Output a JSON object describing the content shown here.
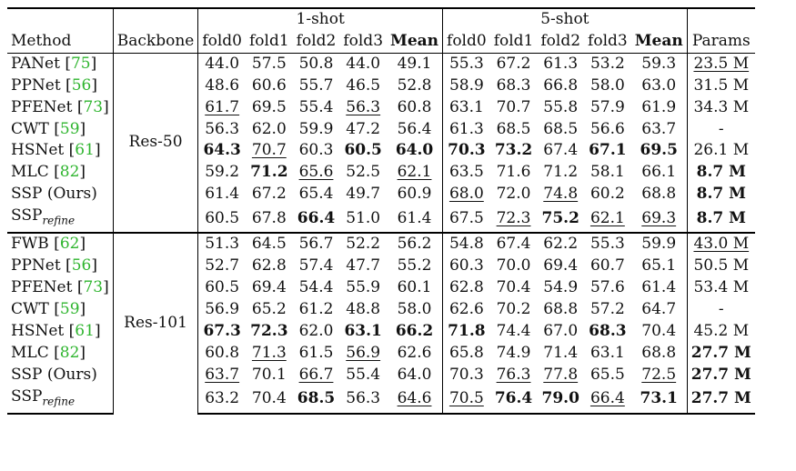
{
  "header": {
    "group1": "1-shot",
    "group2": "5-shot",
    "method": "Method",
    "backbone": "Backbone",
    "cols": [
      "fold0",
      "fold1",
      "fold2",
      "fold3",
      "Mean",
      "fold0",
      "fold1",
      "fold2",
      "fold3",
      "Mean"
    ],
    "params": "Params"
  },
  "sections": [
    {
      "backbone": "Res-50",
      "rows": [
        {
          "method": "PANet",
          "cite": "75",
          "sub": "",
          "vals": [
            "44.0",
            "57.5",
            "50.8",
            "44.0",
            "49.1",
            "55.3",
            "67.2",
            "61.3",
            "53.2",
            "59.3"
          ],
          "params": "23.5 M",
          "bold": [],
          "under": [
            10
          ]
        },
        {
          "method": "PPNet",
          "cite": "56",
          "sub": "",
          "vals": [
            "48.6",
            "60.6",
            "55.7",
            "46.5",
            "52.8",
            "58.9",
            "68.3",
            "66.8",
            "58.0",
            "63.0"
          ],
          "params": "31.5 M",
          "bold": [],
          "under": []
        },
        {
          "method": "PFENet",
          "cite": "73",
          "sub": "",
          "vals": [
            "61.7",
            "69.5",
            "55.4",
            "56.3",
            "60.8",
            "63.1",
            "70.7",
            "55.8",
            "57.9",
            "61.9"
          ],
          "params": "34.3 M",
          "bold": [],
          "under": [
            0,
            3
          ]
        },
        {
          "method": "CWT",
          "cite": "59",
          "sub": "",
          "vals": [
            "56.3",
            "62.0",
            "59.9",
            "47.2",
            "56.4",
            "61.3",
            "68.5",
            "68.5",
            "56.6",
            "63.7"
          ],
          "params": "-",
          "bold": [],
          "under": []
        },
        {
          "method": "HSNet",
          "cite": "61",
          "sub": "",
          "vals": [
            "64.3",
            "70.7",
            "60.3",
            "60.5",
            "64.0",
            "70.3",
            "73.2",
            "67.4",
            "67.1",
            "69.5"
          ],
          "params": "26.1 M",
          "bold": [
            0,
            3,
            4,
            5,
            6,
            8,
            9
          ],
          "under": [
            1
          ]
        },
        {
          "method": "MLC",
          "cite": "82",
          "sub": "",
          "vals": [
            "59.2",
            "71.2",
            "65.6",
            "52.5",
            "62.1",
            "63.5",
            "71.6",
            "71.2",
            "58.1",
            "66.1"
          ],
          "params": "8.7 M",
          "bold": [
            1,
            10
          ],
          "under": [
            2,
            4
          ]
        },
        {
          "method": "SSP (Ours)",
          "cite": "",
          "sub": "",
          "vals": [
            "61.4",
            "67.2",
            "65.4",
            "49.7",
            "60.9",
            "68.0",
            "72.0",
            "74.8",
            "60.2",
            "68.8"
          ],
          "params": "8.7 M",
          "bold": [
            10
          ],
          "under": [
            5,
            7
          ]
        },
        {
          "method": "SSP",
          "cite": "",
          "sub": "refine",
          "vals": [
            "60.5",
            "67.8",
            "66.4",
            "51.0",
            "61.4",
            "67.5",
            "72.3",
            "75.2",
            "62.1",
            "69.3"
          ],
          "params": "8.7 M",
          "bold": [
            2,
            7,
            10
          ],
          "under": [
            6,
            8,
            9
          ]
        }
      ]
    },
    {
      "backbone": "Res-101",
      "rows": [
        {
          "method": "FWB",
          "cite": "62",
          "sub": "",
          "vals": [
            "51.3",
            "64.5",
            "56.7",
            "52.2",
            "56.2",
            "54.8",
            "67.4",
            "62.2",
            "55.3",
            "59.9"
          ],
          "params": "43.0 M",
          "bold": [],
          "under": [
            10
          ]
        },
        {
          "method": "PPNet",
          "cite": "56",
          "sub": "",
          "vals": [
            "52.7",
            "62.8",
            "57.4",
            "47.7",
            "55.2",
            "60.3",
            "70.0",
            "69.4",
            "60.7",
            "65.1"
          ],
          "params": "50.5 M",
          "bold": [],
          "under": []
        },
        {
          "method": "PFENet",
          "cite": "73",
          "sub": "",
          "vals": [
            "60.5",
            "69.4",
            "54.4",
            "55.9",
            "60.1",
            "62.8",
            "70.4",
            "54.9",
            "57.6",
            "61.4"
          ],
          "params": "53.4 M",
          "bold": [],
          "under": []
        },
        {
          "method": "CWT",
          "cite": "59",
          "sub": "",
          "vals": [
            "56.9",
            "65.2",
            "61.2",
            "48.8",
            "58.0",
            "62.6",
            "70.2",
            "68.8",
            "57.2",
            "64.7"
          ],
          "params": "-",
          "bold": [],
          "under": []
        },
        {
          "method": "HSNet",
          "cite": "61",
          "sub": "",
          "vals": [
            "67.3",
            "72.3",
            "62.0",
            "63.1",
            "66.2",
            "71.8",
            "74.4",
            "67.0",
            "68.3",
            "70.4"
          ],
          "params": "45.2 M",
          "bold": [
            0,
            1,
            3,
            4,
            5,
            8
          ],
          "under": []
        },
        {
          "method": "MLC",
          "cite": "82",
          "sub": "",
          "vals": [
            "60.8",
            "71.3",
            "61.5",
            "56.9",
            "62.6",
            "65.8",
            "74.9",
            "71.4",
            "63.1",
            "68.8"
          ],
          "params": "27.7 M",
          "bold": [
            10
          ],
          "under": [
            1,
            3
          ]
        },
        {
          "method": "SSP (Ours)",
          "cite": "",
          "sub": "",
          "vals": [
            "63.7",
            "70.1",
            "66.7",
            "55.4",
            "64.0",
            "70.3",
            "76.3",
            "77.8",
            "65.5",
            "72.5"
          ],
          "params": "27.7 M",
          "bold": [
            10
          ],
          "under": [
            0,
            2,
            6,
            7,
            9
          ]
        },
        {
          "method": "SSP",
          "cite": "",
          "sub": "refine",
          "vals": [
            "63.2",
            "70.4",
            "68.5",
            "56.3",
            "64.6",
            "70.5",
            "76.4",
            "79.0",
            "66.4",
            "73.1"
          ],
          "params": "27.7 M",
          "bold": [
            2,
            6,
            7,
            9,
            10
          ],
          "under": [
            4,
            5,
            8
          ]
        }
      ]
    }
  ]
}
